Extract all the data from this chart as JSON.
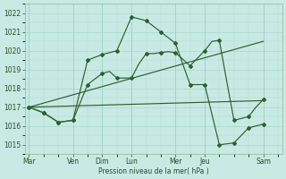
{
  "xlabel": "Pression niveau de la mer( hPa )",
  "bg_color": "#c8eae4",
  "grid_color": "#a8d8cc",
  "line_color": "#2d6030",
  "ylim": [
    1014.5,
    1022.5
  ],
  "yticks": [
    1015,
    1016,
    1017,
    1018,
    1019,
    1020,
    1021,
    1022
  ],
  "day_labels": [
    "Mar",
    "Ven",
    "Dim",
    "Lun",
    "Mer",
    "Jeu",
    "Sam"
  ],
  "day_positions": [
    0,
    3,
    5,
    7,
    10,
    12,
    16
  ],
  "xlim": [
    -0.3,
    17.3
  ],
  "total_points": 17,
  "series1_x": [
    0,
    0.5,
    1,
    1.5,
    2,
    2.5,
    3,
    3.5,
    4,
    4.5,
    5,
    5.5,
    6,
    6.5,
    7,
    7.5,
    8,
    8.5,
    9,
    9.5,
    10,
    10.5,
    11,
    11.5,
    12,
    12.5,
    13,
    13.5,
    14,
    14.5,
    15,
    15.5,
    16
  ],
  "series1_y": [
    1017.0,
    1016.85,
    1016.7,
    1016.45,
    1016.2,
    1016.25,
    1016.3,
    1017.9,
    1019.5,
    1019.65,
    1019.8,
    1019.9,
    1020.0,
    1020.9,
    1021.8,
    1021.7,
    1021.6,
    1021.3,
    1021.0,
    1020.7,
    1020.4,
    1019.3,
    1018.2,
    1018.2,
    1018.2,
    1016.6,
    1015.0,
    1015.05,
    1015.1,
    1015.5,
    1015.9,
    1016.0,
    1016.1
  ],
  "series2_x": [
    0,
    0.5,
    1,
    1.5,
    2,
    2.5,
    3,
    3.5,
    4,
    4.5,
    5,
    5.5,
    6,
    6.5,
    7,
    7.5,
    8,
    8.5,
    9,
    9.5,
    10,
    10.5,
    11,
    11.5,
    12,
    12.5,
    13,
    13.5,
    14,
    14.5,
    15,
    15.5,
    16
  ],
  "series2_y": [
    1017.0,
    1016.85,
    1016.7,
    1016.45,
    1016.2,
    1016.25,
    1016.3,
    1017.25,
    1018.2,
    1018.5,
    1018.8,
    1018.9,
    1018.55,
    1018.55,
    1018.55,
    1019.3,
    1019.85,
    1019.85,
    1019.9,
    1019.95,
    1019.9,
    1019.55,
    1019.2,
    1019.6,
    1020.0,
    1020.5,
    1020.55,
    1018.4,
    1016.3,
    1016.4,
    1016.5,
    1017.0,
    1017.4
  ],
  "series3_x": [
    0,
    16
  ],
  "series3_y": [
    1017.0,
    1017.35
  ],
  "series4_x": [
    0,
    16
  ],
  "series4_y": [
    1017.0,
    1020.5
  ]
}
